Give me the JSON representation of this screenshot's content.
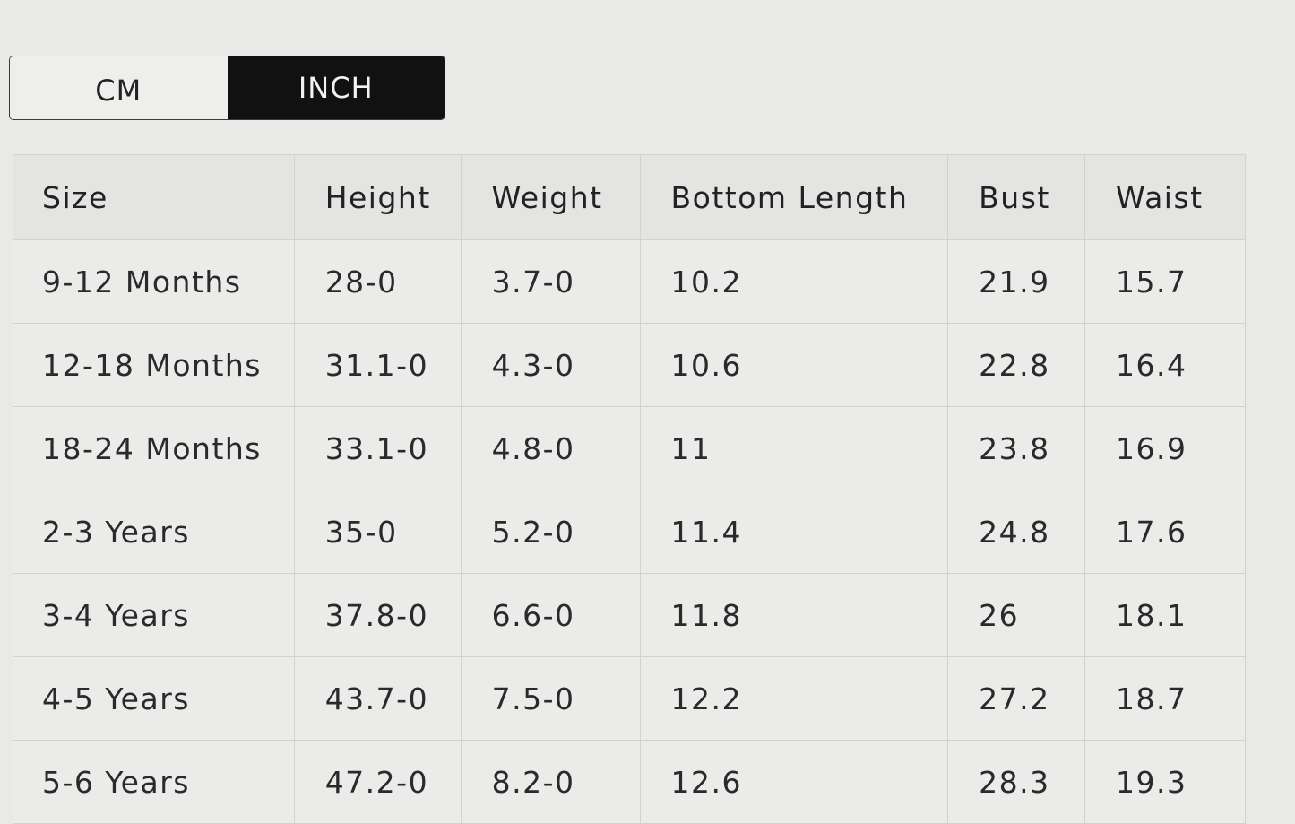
{
  "unit_toggle": {
    "options": [
      "CM",
      "INCH"
    ],
    "selected": "INCH"
  },
  "table": {
    "headers": [
      "Size",
      "Height",
      "Weight",
      "Bottom Length",
      "Bust",
      "Waist"
    ],
    "rows": [
      [
        "9-12 Months",
        "28-0",
        "3.7-0",
        "10.2",
        "21.9",
        "15.7"
      ],
      [
        "12-18 Months",
        "31.1-0",
        "4.3-0",
        "10.6",
        "22.8",
        "16.4"
      ],
      [
        "18-24 Months",
        "33.1-0",
        "4.8-0",
        "11",
        "23.8",
        "16.9"
      ],
      [
        "2-3 Years",
        "35-0",
        "5.2-0",
        "11.4",
        "24.8",
        "17.6"
      ],
      [
        "3-4 Years",
        "37.8-0",
        "6.6-0",
        "11.8",
        "26",
        "18.1"
      ],
      [
        "4-5 Years",
        "43.7-0",
        "7.5-0",
        "12.2",
        "27.2",
        "18.7"
      ],
      [
        "5-6 Years",
        "47.2-0",
        "8.2-0",
        "12.6",
        "28.3",
        "19.3"
      ]
    ]
  },
  "colors": {
    "active_toggle": "#111111",
    "background": "#e9eae8"
  }
}
